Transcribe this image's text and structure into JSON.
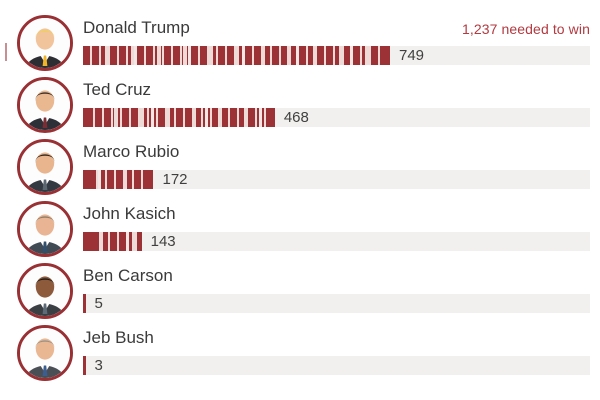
{
  "header": {
    "needed_label": "1,237 needed to win"
  },
  "chart_data": {
    "type": "bar",
    "orientation": "horizontal",
    "title": "",
    "categories": [
      "Donald Trump",
      "Ted Cruz",
      "Marco Rubio",
      "John Kasich",
      "Ben Carson",
      "Jeb Bush"
    ],
    "values": [
      749,
      468,
      172,
      143,
      5,
      3
    ],
    "xlabel": "",
    "ylabel": "",
    "xlim": [
      0,
      1237
    ],
    "annotations": [
      "1,237 needed to win"
    ],
    "grid": false,
    "legend": false,
    "bar_style": "barcode-striped"
  },
  "candidates": [
    {
      "name": "Donald Trump",
      "delegates": 749,
      "avatar": {
        "skin": "#f2c49c",
        "hair": "#f0cf5a",
        "suit": "#2d2d34",
        "tie": "#f0b429"
      }
    },
    {
      "name": "Ted Cruz",
      "delegates": 468,
      "avatar": {
        "skin": "#eab890",
        "hair": "#3a2e2a",
        "suit": "#2e3038",
        "tie": "#7a2d33"
      }
    },
    {
      "name": "Marco Rubio",
      "delegates": 172,
      "avatar": {
        "skin": "#e9b58e",
        "hair": "#2f261f",
        "suit": "#343a41",
        "tie": "#5b6770"
      }
    },
    {
      "name": "John Kasich",
      "delegates": 143,
      "avatar": {
        "skin": "#e9b493",
        "hair": "#8d7d68",
        "suit": "#3f4a55",
        "tie": "#31506e"
      }
    },
    {
      "name": "Ben Carson",
      "delegates": 5,
      "avatar": {
        "skin": "#8d5a3c",
        "hair": "#1d1a18",
        "suit": "#3a3f44",
        "tie": "#5d6b77"
      }
    },
    {
      "name": "Jeb Bush",
      "delegates": 3,
      "avatar": {
        "skin": "#eab793",
        "hair": "#9a9488",
        "suit": "#4a4f56",
        "tie": "#3b5d8f"
      }
    }
  ],
  "colors": {
    "bar": "#9c3136",
    "bar_gap": "#eedad7",
    "track": "#f1f0ee",
    "avatar_ring": "#993034",
    "name_text": "#3a3a3a",
    "value_text": "#404040",
    "needed_text": "#b23a40"
  }
}
